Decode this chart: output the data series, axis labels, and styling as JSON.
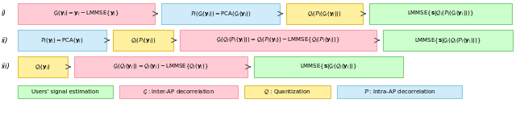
{
  "bg": "#ffffff",
  "colors": {
    "pink_border": "#F4A0B0",
    "pink_fill": "#FFCCD5",
    "blue_border": "#90C8E0",
    "blue_fill": "#D0ECFA",
    "yellow_border": "#E0C040",
    "yellow_fill": "#FFF0A0",
    "green_border": "#80CC80",
    "green_fill": "#CCFFCC"
  },
  "row_i": [
    {
      "text": "$\\mathcal{G}_l(\\mathbf{y}_l) = \\mathbf{y}_l - \\mathrm{LMMSE}\\{\\mathbf{y}_l\\}$",
      "fc": "pink_fill",
      "bc": "pink_border"
    },
    {
      "text": "$\\mathcal{P}_l(\\mathcal{G}_l(\\mathbf{y}_l)) = \\mathrm{PCA}(\\mathcal{G}_l(\\mathbf{y}_l))$",
      "fc": "blue_fill",
      "bc": "blue_border"
    },
    {
      "text": "$\\mathcal{Q}_l(\\mathcal{P}_l(\\mathcal{G}_l(\\mathbf{y}_l)))$",
      "fc": "yellow_fill",
      "bc": "yellow_border"
    },
    {
      "text": "$\\mathrm{LMMSE}\\{\\mathbf{s}|\\mathcal{Q}_l(\\mathcal{P}_l(\\mathcal{G}_l(\\mathbf{y}_l)))\\}$",
      "fc": "green_fill",
      "bc": "green_border"
    }
  ],
  "row_ii": [
    {
      "text": "$\\mathcal{P}_l(\\mathbf{y}_l) = \\mathrm{PCA}(\\mathbf{y}_l)$",
      "fc": "blue_fill",
      "bc": "blue_border"
    },
    {
      "text": "$\\mathcal{Q}_l(\\mathcal{P}_l(\\mathbf{y}_l))$",
      "fc": "yellow_fill",
      "bc": "yellow_border"
    },
    {
      "text": "$\\mathcal{G}_l(\\mathcal{Q}_l(\\mathcal{P}_l(\\mathbf{y}_l))) = \\mathcal{Q}_l(\\mathcal{P}_l(\\mathbf{y}_l)) - \\mathrm{LMMSE}\\{\\mathcal{Q}_l(\\mathcal{P}_l(\\mathbf{y}_l))\\}$",
      "fc": "pink_fill",
      "bc": "pink_border"
    },
    {
      "text": "$\\mathrm{LMMSE}\\{\\mathbf{s}|\\mathcal{G}_l(\\mathcal{Q}_l(\\mathcal{P}_l(\\mathbf{y}_l)))\\}$",
      "fc": "green_fill",
      "bc": "green_border"
    }
  ],
  "row_iii": [
    {
      "text": "$\\mathcal{Q}_l(\\mathbf{y}_l)$",
      "fc": "yellow_fill",
      "bc": "yellow_border"
    },
    {
      "text": "$\\mathcal{G}_l(\\mathcal{Q}_l(\\mathbf{y}_l)) = \\mathcal{Q}_l(\\mathbf{y}_l) - \\mathrm{LMMSE}\\{\\mathcal{Q}_l(\\mathbf{y}_l)\\}$",
      "fc": "pink_fill",
      "bc": "pink_border"
    },
    {
      "text": "$\\mathrm{LMMSE}\\{\\mathbf{s}|\\mathcal{G}_l(\\mathcal{Q}_l(\\mathbf{y}_l))\\}$",
      "fc": "green_fill",
      "bc": "green_border"
    }
  ],
  "legend": [
    {
      "text": "Users' signal estimation",
      "fc": "green_fill",
      "bc": "green_border"
    },
    {
      "text": "$\\mathcal{G}$ : Inter-AP decorrelation",
      "fc": "pink_fill",
      "bc": "pink_border"
    },
    {
      "text": "$\\mathcal{Q}$ : Quantization",
      "fc": "yellow_fill",
      "bc": "yellow_border"
    },
    {
      "text": "$\\mathcal{P}$ : Intra-AP decorrelation",
      "fc": "blue_fill",
      "bc": "blue_border"
    }
  ],
  "row_label_i": "i)",
  "row_label_ii": "ii)",
  "row_label_iii": "iii)"
}
